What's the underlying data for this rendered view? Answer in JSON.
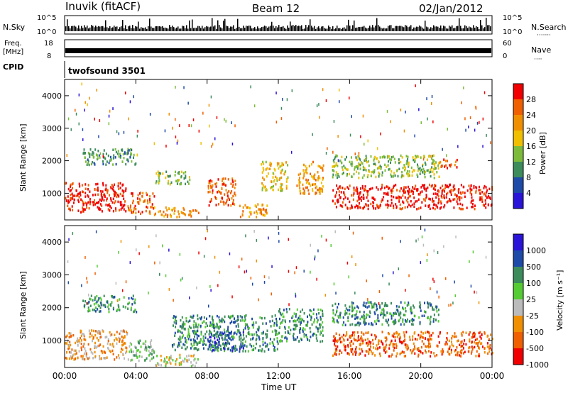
{
  "header": {
    "station": "Inuvik (fitACF)",
    "beam": "Beam 12",
    "date": "02/Jan/2012"
  },
  "strip_labels": {
    "nsky": "N.Sky",
    "nsky_top": "10^5",
    "nsky_bottom": "10^0",
    "nsearch": "N.Search",
    "nsearch_top": "10^5",
    "nsearch_bottom": "10^0",
    "freq_line1": "Freq.",
    "freq_line2": "[MHz]",
    "freq_top": "18",
    "freq_bottom": "8",
    "nave": "Nave",
    "nave_top": "60",
    "nave_bottom": "0",
    "cpid": "CPID",
    "cpid_value": "twofsound 3501"
  },
  "colors": {
    "power_scale": [
      "#2a14d8",
      "#1e4aa8",
      "#3c8c5c",
      "#7cbc3a",
      "#f0c000",
      "#f09000",
      "#f06000",
      "#f00000"
    ],
    "velocity_scale": [
      "#f00000",
      "#f06000",
      "#f09000",
      "#bbbbbb",
      "#55cc33",
      "#3c8c5c",
      "#1e4aa8",
      "#2a14d8"
    ]
  },
  "chart_data": [
    {
      "type": "heatmap",
      "name": "power",
      "ylabel": "Slant Range [km]",
      "yticks": [
        "1000",
        "2000",
        "3000",
        "4000"
      ],
      "ylim": [
        180,
        4500
      ],
      "xlim": [
        0,
        24
      ],
      "xticks": [
        "00:00",
        "04:00",
        "08:00",
        "12:00",
        "16:00",
        "20:00",
        "00:00"
      ],
      "colorbar_label": "Power [dB]",
      "colorbar_ticks": [
        "4",
        "8",
        "12",
        "16",
        "20",
        "24",
        "28"
      ],
      "colorbar_range": [
        0,
        32
      ],
      "regions": [
        {
          "x": [
            0,
            3.5
          ],
          "y": [
            450,
            1350
          ],
          "level": 7
        },
        {
          "x": [
            3.5,
            5
          ],
          "y": [
            400,
            1050
          ],
          "level": 6
        },
        {
          "x": [
            5,
            7.5
          ],
          "y": [
            300,
            600
          ],
          "level": 5
        },
        {
          "x": [
            5,
            7
          ],
          "y": [
            1300,
            1700
          ],
          "level": 3
        },
        {
          "x": [
            8,
            9.6
          ],
          "y": [
            650,
            1500
          ],
          "level": 6
        },
        {
          "x": [
            9.8,
            11.5
          ],
          "y": [
            300,
            700
          ],
          "level": 5
        },
        {
          "x": [
            11,
            12.5
          ],
          "y": [
            1100,
            2000
          ],
          "level": 4
        },
        {
          "x": [
            13,
            14.5
          ],
          "y": [
            1000,
            2000
          ],
          "level": 5
        },
        {
          "x": [
            15,
            24
          ],
          "y": [
            550,
            1300
          ],
          "level": 7
        },
        {
          "x": [
            15,
            21
          ],
          "y": [
            1500,
            2200
          ],
          "level": 3
        },
        {
          "x": [
            21,
            22
          ],
          "y": [
            1800,
            2100
          ],
          "level": 6
        },
        {
          "x": [
            1,
            4
          ],
          "y": [
            1900,
            2400
          ],
          "level": 2
        }
      ]
    },
    {
      "type": "heatmap",
      "name": "velocity",
      "ylabel": "Slant Range [km]",
      "yticks": [
        "1000",
        "2000",
        "3000",
        "4000"
      ],
      "ylim": [
        180,
        4500
      ],
      "xlim": [
        0,
        24
      ],
      "xticks": [
        "00:00",
        "04:00",
        "08:00",
        "12:00",
        "16:00",
        "20:00",
        "00:00"
      ],
      "xlabel": "Time UT",
      "colorbar_label": "Velocity [m s⁻¹]",
      "colorbar_ticks": [
        "1000",
        "500",
        "100",
        "25",
        "-25",
        "-100",
        "-500",
        "-1000"
      ],
      "regions": [
        {
          "x": [
            0,
            3.5
          ],
          "y": [
            450,
            1350
          ],
          "level": 2
        },
        {
          "x": [
            3.5,
            5
          ],
          "y": [
            400,
            1050
          ],
          "level": 4
        },
        {
          "x": [
            5,
            7.5
          ],
          "y": [
            250,
            600
          ],
          "level": 3
        },
        {
          "x": [
            6,
            12
          ],
          "y": [
            700,
            1800
          ],
          "level": 5
        },
        {
          "x": [
            8,
            10
          ],
          "y": [
            700,
            1300
          ],
          "level": 6
        },
        {
          "x": [
            12,
            14.5
          ],
          "y": [
            1000,
            2000
          ],
          "level": 5
        },
        {
          "x": [
            15,
            24
          ],
          "y": [
            550,
            1300
          ],
          "level": 1
        },
        {
          "x": [
            15,
            21
          ],
          "y": [
            1500,
            2200
          ],
          "level": 5
        },
        {
          "x": [
            1,
            4
          ],
          "y": [
            1900,
            2400
          ],
          "level": 5
        }
      ]
    }
  ]
}
